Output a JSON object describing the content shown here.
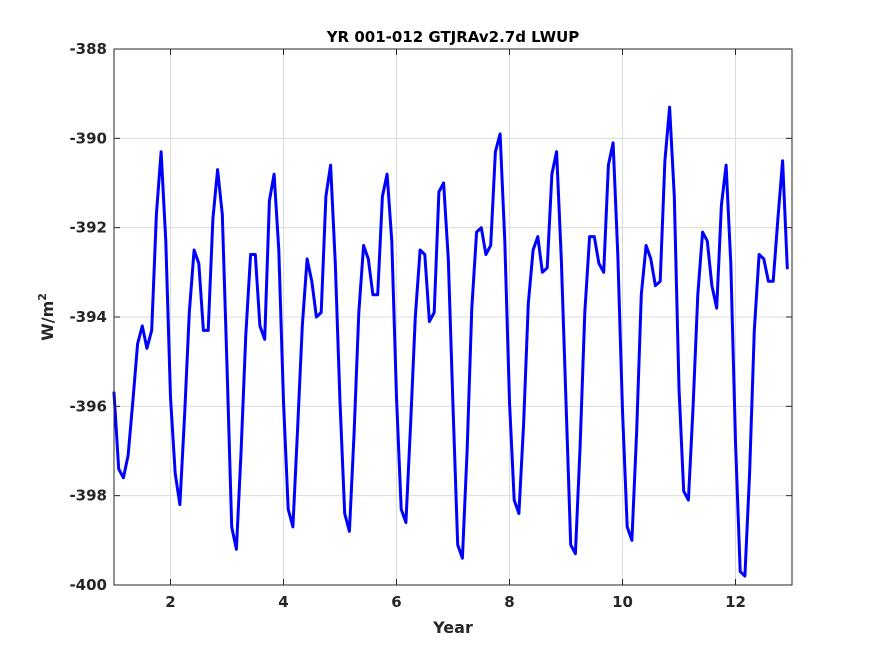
{
  "chart_data": {
    "type": "line",
    "title": "YR 001-012 GTJRAv2.7d LWUP",
    "xlabel": "Year",
    "ylabel": "W/m",
    "ylabel_superscript": "2",
    "xlim": [
      1,
      13
    ],
    "ylim": [
      -400,
      -388
    ],
    "xticks": [
      2,
      4,
      6,
      8,
      10,
      12
    ],
    "yticks": [
      -400,
      -398,
      -396,
      -394,
      -392,
      -390,
      -388
    ],
    "grid": true,
    "series": [
      {
        "color": "#0000ff",
        "x": [
          1.0,
          1.083,
          1.167,
          1.25,
          1.333,
          1.417,
          1.5,
          1.583,
          1.667,
          1.75,
          1.833,
          1.917,
          2.0,
          2.083,
          2.167,
          2.25,
          2.333,
          2.417,
          2.5,
          2.583,
          2.667,
          2.75,
          2.833,
          2.917,
          3.0,
          3.083,
          3.167,
          3.25,
          3.333,
          3.417,
          3.5,
          3.583,
          3.667,
          3.75,
          3.833,
          3.917,
          4.0,
          4.083,
          4.167,
          4.25,
          4.333,
          4.417,
          4.5,
          4.583,
          4.667,
          4.75,
          4.833,
          4.917,
          5.0,
          5.083,
          5.167,
          5.25,
          5.333,
          5.417,
          5.5,
          5.583,
          5.667,
          5.75,
          5.833,
          5.917,
          6.0,
          6.083,
          6.167,
          6.25,
          6.333,
          6.417,
          6.5,
          6.583,
          6.667,
          6.75,
          6.833,
          6.917,
          7.0,
          7.083,
          7.167,
          7.25,
          7.333,
          7.417,
          7.5,
          7.583,
          7.667,
          7.75,
          7.833,
          7.917,
          8.0,
          8.083,
          8.167,
          8.25,
          8.333,
          8.417,
          8.5,
          8.583,
          8.667,
          8.75,
          8.833,
          8.917,
          9.0,
          9.083,
          9.167,
          9.25,
          9.333,
          9.417,
          9.5,
          9.583,
          9.667,
          9.75,
          9.833,
          9.917,
          10.0,
          10.083,
          10.167,
          10.25,
          10.333,
          10.417,
          10.5,
          10.583,
          10.667,
          10.75,
          10.833,
          10.917,
          11.0,
          11.083,
          11.167,
          11.25,
          11.333,
          11.417,
          11.5,
          11.583,
          11.667,
          11.75,
          11.833,
          11.917,
          12.0,
          12.083,
          12.167,
          12.25,
          12.333,
          12.417,
          12.5,
          12.583,
          12.667,
          12.75,
          12.833,
          12.917
        ],
        "y": [
          -395.7,
          -397.4,
          -397.6,
          -397.1,
          -395.9,
          -394.6,
          -394.2,
          -394.7,
          -394.3,
          -391.7,
          -390.3,
          -392.3,
          -395.8,
          -397.5,
          -398.2,
          -396.2,
          -393.9,
          -392.5,
          -392.8,
          -394.3,
          -394.3,
          -391.8,
          -390.7,
          -391.7,
          -395.1,
          -398.7,
          -399.2,
          -397.0,
          -394.4,
          -392.6,
          -392.6,
          -394.2,
          -394.5,
          -391.4,
          -390.8,
          -392.5,
          -395.9,
          -398.3,
          -398.7,
          -396.5,
          -394.2,
          -392.7,
          -393.2,
          -394.0,
          -393.9,
          -391.3,
          -390.6,
          -392.8,
          -395.9,
          -398.4,
          -398.8,
          -396.6,
          -393.9,
          -392.4,
          -392.7,
          -393.5,
          -393.5,
          -391.3,
          -390.8,
          -392.3,
          -395.8,
          -398.3,
          -398.6,
          -396.4,
          -394.0,
          -392.5,
          -392.6,
          -394.1,
          -393.9,
          -391.2,
          -391.0,
          -392.7,
          -396.0,
          -399.1,
          -399.4,
          -397.0,
          -393.8,
          -392.1,
          -392.0,
          -392.6,
          -392.4,
          -390.3,
          -389.9,
          -392.3,
          -395.9,
          -398.1,
          -398.4,
          -396.4,
          -393.7,
          -392.5,
          -392.2,
          -393.0,
          -392.9,
          -390.8,
          -390.3,
          -392.7,
          -395.9,
          -399.1,
          -399.3,
          -396.9,
          -393.9,
          -392.2,
          -392.2,
          -392.8,
          -393.0,
          -390.6,
          -390.1,
          -392.6,
          -396.1,
          -398.7,
          -399.0,
          -396.6,
          -393.5,
          -392.4,
          -392.7,
          -393.3,
          -393.2,
          -390.5,
          -389.3,
          -391.3,
          -395.6,
          -397.9,
          -398.1,
          -396.0,
          -393.5,
          -392.1,
          -392.3,
          -393.3,
          -393.8,
          -391.5,
          -390.6,
          -392.8,
          -396.8,
          -399.7,
          -399.8,
          -397.5,
          -394.3,
          -392.6,
          -392.7,
          -393.2,
          -393.2,
          -391.8,
          -390.5,
          -392.9
        ]
      }
    ]
  }
}
